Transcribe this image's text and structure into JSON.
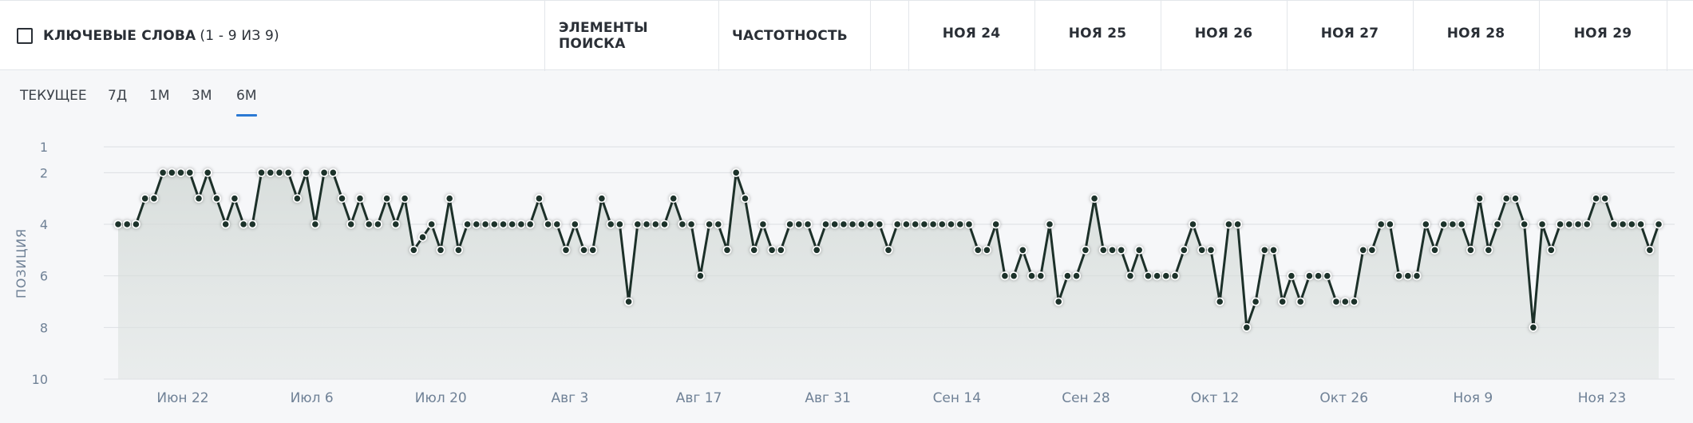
{
  "header": {
    "keywords_label": "КЛЮЧЕВЫЕ СЛОВА",
    "keywords_count": "(1 - 9 ИЗ 9)",
    "search_elements_label": "ЭЛЕМЕНТЫ ПОИСКА",
    "frequency_label": "ЧАСТОТНОСТЬ",
    "dates": [
      "НОЯ 24",
      "НОЯ 25",
      "НОЯ 26",
      "НОЯ 27",
      "НОЯ 28",
      "НОЯ 29"
    ]
  },
  "tabs": {
    "items": [
      "ТЕКУЩЕЕ",
      "7Д",
      "1М",
      "3М",
      "6М"
    ],
    "active": "6М"
  },
  "chart_data": {
    "type": "line",
    "title": "",
    "xlabel": "",
    "ylabel": "ПОЗИЦИЯ",
    "y_inverted": true,
    "ylim": [
      10,
      1
    ],
    "y_ticks": [
      1,
      2,
      4,
      6,
      8,
      10
    ],
    "x_tick_labels": [
      "Июн 22",
      "Июл 6",
      "Июл 20",
      "Авг 3",
      "Авг 17",
      "Авг 31",
      "Сен 14",
      "Сен 28",
      "Окт 12",
      "Окт 26",
      "Ноя 9",
      "Ноя 23"
    ],
    "grid": true,
    "legend": "none",
    "line_color": "#1c3029",
    "series": [
      {
        "values": [
          4,
          4,
          4,
          3,
          3,
          2,
          2,
          2,
          2,
          3,
          2,
          3,
          4,
          3,
          4,
          4,
          2,
          2,
          2,
          2,
          3,
          2,
          4,
          2,
          2,
          3,
          4,
          3,
          4,
          4,
          3,
          4,
          3,
          5,
          4.5,
          4,
          5,
          3,
          5,
          4,
          4,
          4,
          4,
          4,
          4,
          4,
          4,
          3,
          4,
          4,
          5,
          4,
          5,
          5,
          3,
          4,
          4,
          7,
          4,
          4,
          4,
          4,
          3,
          4,
          4,
          6,
          4,
          4,
          5,
          2,
          3,
          5,
          4,
          5,
          5,
          4,
          4,
          4,
          5,
          4,
          4,
          4,
          4,
          4,
          4,
          4,
          5,
          4,
          4,
          4,
          4,
          4,
          4,
          4,
          4,
          4,
          5,
          5,
          4,
          6,
          6,
          5,
          6,
          6,
          4,
          7,
          6,
          6,
          5,
          3,
          5,
          5,
          5,
          6,
          5,
          6,
          6,
          6,
          6,
          5,
          4,
          5,
          5,
          7,
          4,
          4,
          8,
          7,
          5,
          5,
          7,
          6,
          7,
          6,
          6,
          6,
          7,
          7,
          7,
          5,
          5,
          4,
          4,
          6,
          6,
          6,
          4,
          5,
          4,
          4,
          4,
          5,
          3,
          5,
          4,
          3,
          3,
          4,
          8,
          4,
          5,
          4,
          4,
          4,
          4,
          3,
          3,
          4,
          4,
          4,
          4,
          5,
          4
        ]
      }
    ]
  }
}
